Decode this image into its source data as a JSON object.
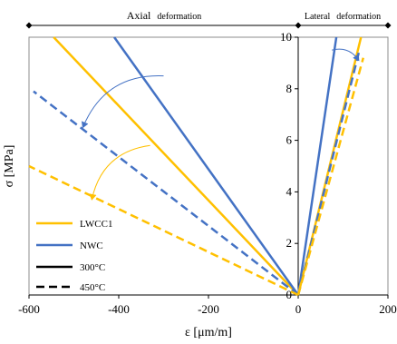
{
  "chart_data": {
    "type": "line",
    "xlabel": "ε [μm/m]",
    "ylabel": "σ [MPa]",
    "xlim": [
      -600,
      200
    ],
    "ylim": [
      0,
      10
    ],
    "xticks": [
      -600,
      -400,
      -200,
      0,
      200
    ],
    "yticks": [
      0,
      2,
      4,
      6,
      8,
      10
    ],
    "grid": false,
    "legend_position": "bottom-left",
    "regions": [
      {
        "label_main": "Axial",
        "label_sub": "deformation"
      },
      {
        "label_main": "Lateral",
        "label_sub": "deformation"
      }
    ],
    "colors": {
      "LWCC1": "#FFC000",
      "NWC": "#4472C4",
      "neutral": "#000000"
    },
    "legend": [
      {
        "label": "LWCC1",
        "color": "#FFC000",
        "dash": "solid"
      },
      {
        "label": "NWC",
        "color": "#4472C4",
        "dash": "solid"
      },
      {
        "label": "300°C",
        "color": "#000000",
        "dash": "solid"
      },
      {
        "label": "450°C",
        "color": "#000000",
        "dash": "dashed"
      }
    ],
    "series": [
      {
        "key": "lwcc1-300-axial",
        "color": "#FFC000",
        "dash": "solid",
        "points": [
          [
            0,
            0
          ],
          [
            -545,
            10
          ]
        ]
      },
      {
        "key": "nwc-300-axial",
        "color": "#4472C4",
        "dash": "solid",
        "points": [
          [
            0,
            0
          ],
          [
            -410,
            10
          ]
        ]
      },
      {
        "key": "nwc-450-axial",
        "color": "#4472C4",
        "dash": "dashed",
        "points": [
          [
            0,
            0
          ],
          [
            -590,
            7.9
          ]
        ]
      },
      {
        "key": "lwcc1-450-axial",
        "color": "#FFC000",
        "dash": "dashed",
        "points": [
          [
            0,
            0
          ],
          [
            -600,
            5.0
          ]
        ]
      },
      {
        "key": "nwc-300-lateral",
        "color": "#4472C4",
        "dash": "solid",
        "points": [
          [
            0,
            0
          ],
          [
            85,
            10
          ]
        ]
      },
      {
        "key": "lwcc1-300-lateral",
        "color": "#FFC000",
        "dash": "solid",
        "points": [
          [
            0,
            0
          ],
          [
            140,
            10
          ]
        ]
      },
      {
        "key": "nwc-450-lateral",
        "color": "#4472C4",
        "dash": "dashed",
        "points": [
          [
            0,
            0
          ],
          [
            135,
            9.4
          ]
        ]
      },
      {
        "key": "lwcc1-450-lateral",
        "color": "#FFC000",
        "dash": "dashed",
        "points": [
          [
            0,
            0
          ],
          [
            145,
            9.2
          ]
        ]
      }
    ],
    "arrows": [
      {
        "key": "nwc-shift-arrow",
        "color": "#4472C4",
        "from": [
          -300,
          8.5
        ],
        "to": [
          -480,
          6.5
        ]
      },
      {
        "key": "lwcc1-shift-arrow",
        "color": "#FFC000",
        "from": [
          -330,
          5.8
        ],
        "to": [
          -460,
          3.7
        ]
      },
      {
        "key": "lateral-shift-arrow",
        "color": "#4472C4",
        "from": [
          75,
          9.5
        ],
        "to": [
          135,
          9.1
        ]
      }
    ]
  }
}
